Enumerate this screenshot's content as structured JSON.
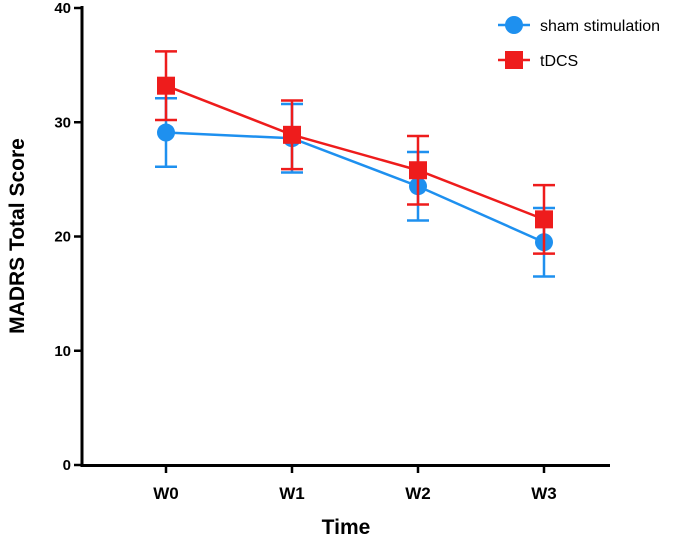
{
  "chart_data": {
    "type": "line",
    "title": "",
    "xlabel": "Time",
    "ylabel": "MADRS Total Score",
    "categories": [
      "W0",
      "W1",
      "W2",
      "W3"
    ],
    "ylim": [
      0,
      40
    ],
    "yticks": [
      0,
      10,
      20,
      30,
      40
    ],
    "grid": false,
    "legend_position": "top-right",
    "series": [
      {
        "name": "sham stimulation",
        "marker": "circle",
        "color": "#1e90ef",
        "values": [
          29.1,
          28.6,
          24.4,
          19.5
        ],
        "error": [
          3.0,
          3.0,
          3.0,
          3.0
        ]
      },
      {
        "name": "tDCS",
        "marker": "square",
        "color": "#ee1c1c",
        "values": [
          33.2,
          28.9,
          25.8,
          21.5
        ],
        "error": [
          3.0,
          3.0,
          3.0,
          3.0
        ]
      }
    ]
  }
}
